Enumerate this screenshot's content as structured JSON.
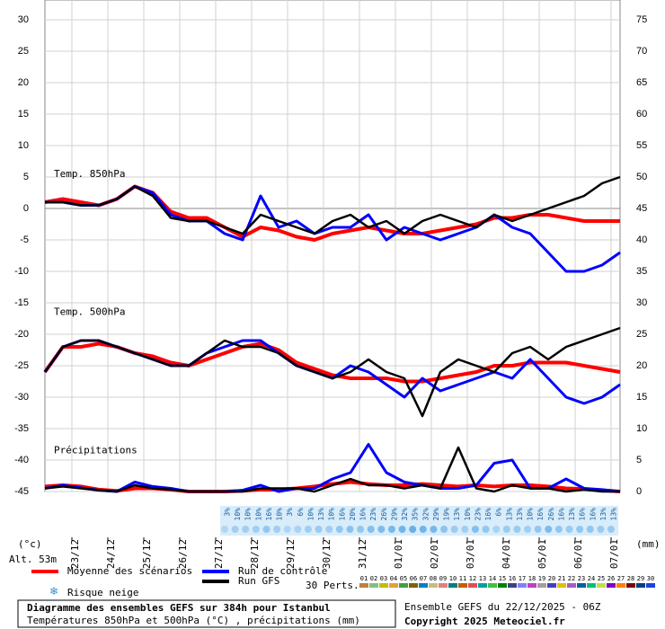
{
  "chart_data": {
    "type": "line",
    "title": "Diagramme des ensembles GEFS sur 384h pour Istanbul",
    "subtitle": "Températures 850hPa et 500hPa (°C) , précipitations (mm)",
    "run_info": "Ensemble GEFS du 22/12/2025 - 06Z",
    "copyright": "Copyright 2025 Meteociel.fr",
    "y_label": "(°c)",
    "y2_label": "(mm)",
    "altitude": "Alt. 53m",
    "grid": true,
    "x": [
      0,
      12,
      24,
      36,
      48,
      60,
      72,
      84,
      96,
      108,
      120,
      132,
      144,
      156,
      168,
      180,
      192,
      204,
      216,
      228,
      240,
      252,
      264,
      276,
      288,
      300,
      312,
      324,
      336,
      348,
      360,
      372,
      384
    ],
    "xlim": [
      0,
      384
    ],
    "xticks": [
      {
        "value": 18,
        "label": "23/12"
      },
      {
        "value": 42,
        "label": "24/12"
      },
      {
        "value": 66,
        "label": "25/12"
      },
      {
        "value": 90,
        "label": "26/12"
      },
      {
        "value": 114,
        "label": "27/12"
      },
      {
        "value": 138,
        "label": "28/12"
      },
      {
        "value": 162,
        "label": "29/12"
      },
      {
        "value": 186,
        "label": "30/12"
      },
      {
        "value": 210,
        "label": "31/12"
      },
      {
        "value": 234,
        "label": "01/01"
      },
      {
        "value": 258,
        "label": "02/01"
      },
      {
        "value": 282,
        "label": "03/01"
      },
      {
        "value": 306,
        "label": "04/01"
      },
      {
        "value": 330,
        "label": "05/01"
      },
      {
        "value": 354,
        "label": "06/01"
      },
      {
        "value": 378,
        "label": "07/01"
      }
    ],
    "ylim": [
      -45,
      30
    ],
    "yticks": [
      30,
      25,
      20,
      15,
      10,
      5,
      0,
      -5,
      -10,
      -15,
      -20,
      -25,
      -30,
      -35,
      -40,
      -45
    ],
    "y2lim": [
      0,
      75
    ],
    "y2ticks": [
      75,
      70,
      65,
      60,
      55,
      50,
      45,
      40,
      35,
      30,
      25,
      20,
      15,
      10,
      5,
      0
    ],
    "panels": [
      {
        "label": "Temp. 850hPa",
        "series": [
          {
            "name": "Moyenne des scénarios",
            "color": "#ff0000",
            "values": [
              1,
              1.5,
              1,
              0.5,
              1.5,
              3.5,
              2.5,
              -0.5,
              -1.5,
              -1.5,
              -3,
              -4.5,
              -3,
              -3.5,
              -4.5,
              -5,
              -4,
              -3.5,
              -3,
              -3.5,
              -4,
              -4,
              -3.5,
              -3,
              -2.5,
              -1.5,
              -1.5,
              -1,
              -1,
              -1.5,
              -2,
              -2,
              -2
            ]
          },
          {
            "name": "Run de contrôle",
            "color": "#0000ff",
            "values": [
              1,
              1,
              0.5,
              0.5,
              1.5,
              3.5,
              2.5,
              -1,
              -2,
              -2,
              -4,
              -5,
              2,
              -3,
              -2,
              -4,
              -3,
              -3,
              -1,
              -5,
              -3,
              -4,
              -5,
              -4,
              -3,
              -1,
              -3,
              -4,
              -7,
              -10,
              -10,
              -9,
              -7
            ]
          },
          {
            "name": "Run GFS",
            "color": "#000000",
            "values": [
              1,
              1,
              0.5,
              0.5,
              1.5,
              3.5,
              2,
              -1.5,
              -2,
              -2,
              -3,
              -4,
              -1,
              -2,
              -3,
              -4,
              -2,
              -1,
              -3,
              -2,
              -4,
              -2,
              -1,
              -2,
              -3,
              -1,
              -2,
              -1,
              0,
              1,
              2,
              4,
              5
            ]
          }
        ]
      },
      {
        "label": "Temp. 500hPa",
        "series": [
          {
            "color": "#ff0000",
            "values": [
              -26,
              -22,
              -22,
              -21.5,
              -22,
              -23,
              -23.5,
              -24.5,
              -25,
              -24,
              -23,
              -22,
              -21.5,
              -22.5,
              -24.5,
              -25.5,
              -26.5,
              -27,
              -27,
              -27,
              -27.5,
              -27.5,
              -27,
              -26.5,
              -26,
              -25,
              -25,
              -24.5,
              -24.5,
              -24.5,
              -25,
              -25.5,
              -26
            ]
          },
          {
            "color": "#0000ff",
            "values": [
              -26,
              -22,
              -21,
              -21,
              -22,
              -23,
              -24,
              -25,
              -25,
              -23,
              -22,
              -21,
              -21,
              -23,
              -25,
              -26,
              -27,
              -25,
              -26,
              -28,
              -30,
              -27,
              -29,
              -28,
              -27,
              -26,
              -27,
              -24,
              -27,
              -30,
              -31,
              -30,
              -28
            ]
          },
          {
            "color": "#000000",
            "values": [
              -26,
              -22,
              -21,
              -21,
              -22,
              -23,
              -24,
              -25,
              -25,
              -23,
              -21,
              -22,
              -22,
              -23,
              -25,
              -26,
              -27,
              -26,
              -24,
              -26,
              -27,
              -33,
              -26,
              -24,
              -25,
              -26,
              -23,
              -22,
              -24,
              -22,
              -21,
              -20,
              -19
            ]
          }
        ]
      },
      {
        "label": "Précipitations",
        "series": [
          {
            "color": "#ff0000",
            "axis": "y2",
            "values": [
              0.8,
              1,
              0.8,
              0.3,
              0.1,
              0.5,
              0.5,
              0.3,
              0,
              0,
              0,
              0.1,
              0.3,
              0.3,
              0.5,
              0.8,
              1.2,
              1.5,
              1.2,
              1,
              1,
              1.2,
              1,
              0.8,
              1,
              0.8,
              1,
              1,
              0.8,
              0.5,
              0.4,
              0.2,
              0
            ]
          },
          {
            "color": "#0000ff",
            "axis": "y2",
            "values": [
              0.5,
              1,
              0.6,
              0.2,
              0,
              1.5,
              0.8,
              0.5,
              0,
              0,
              0,
              0.2,
              1,
              0,
              0.5,
              0.5,
              2,
              3,
              7.5,
              3,
              1.5,
              1,
              0.5,
              0.5,
              1,
              4.5,
              5,
              0.5,
              0.5,
              2,
              0.5,
              0.3,
              0
            ]
          },
          {
            "color": "#000000",
            "axis": "y2",
            "values": [
              0.5,
              0.8,
              0.5,
              0.2,
              0,
              1,
              0.5,
              0.3,
              0,
              0,
              0,
              0,
              0.5,
              0.5,
              0.5,
              0,
              1,
              2,
              1,
              1,
              0.5,
              1,
              0.5,
              7,
              0.5,
              0,
              1,
              0.5,
              0.5,
              0,
              0.3,
              0,
              0
            ]
          }
        ]
      }
    ],
    "snow_risk": {
      "label": "Risque neige",
      "values": [
        3,
        10,
        10,
        10,
        16,
        10,
        3,
        6,
        10,
        13,
        10,
        16,
        20,
        16,
        23,
        26,
        29,
        32,
        35,
        32,
        29,
        19,
        13,
        10,
        23,
        16,
        6,
        13,
        13,
        10,
        16,
        26,
        16,
        13,
        16,
        16,
        13,
        13
      ],
      "value_labels": [
        "3%",
        "10%",
        "10%",
        "10%",
        "16%",
        "10%",
        "3%",
        "6%",
        "10%",
        "13%",
        "10%",
        "16%",
        "20%",
        "16%",
        "23%",
        "26%",
        "29%",
        "32%",
        "35%",
        "32%",
        "29%",
        "19%",
        "13%",
        "10%",
        "23%",
        "16%",
        "6%",
        "13%",
        "13%",
        "10%",
        "16%",
        "26%",
        "16%",
        "13%",
        "16%",
        "16%",
        "13%",
        "13%"
      ]
    },
    "perturbations": {
      "label": "30 Perts.",
      "items": [
        {
          "label": "01",
          "color": "#c08040"
        },
        {
          "label": "02",
          "color": "#80c080"
        },
        {
          "label": "03",
          "color": "#c0c000"
        },
        {
          "label": "04",
          "color": "#e0a040"
        },
        {
          "label": "05",
          "color": "#40a040"
        },
        {
          "label": "06",
          "color": "#806000"
        },
        {
          "label": "07",
          "color": "#0080c0"
        },
        {
          "label": "08",
          "color": "#c0c080"
        },
        {
          "label": "09",
          "color": "#e08080"
        },
        {
          "label": "10",
          "color": "#008080"
        },
        {
          "label": "11",
          "color": "#c06000"
        },
        {
          "label": "12",
          "color": "#e05050"
        },
        {
          "label": "13",
          "color": "#00a0a0"
        },
        {
          "label": "14",
          "color": "#40c040"
        },
        {
          "label": "15",
          "color": "#008000"
        },
        {
          "label": "16",
          "color": "#404080"
        },
        {
          "label": "17",
          "color": "#8080ff"
        },
        {
          "label": "18",
          "color": "#c040c0"
        },
        {
          "label": "19",
          "color": "#a0a0a0"
        },
        {
          "label": "20",
          "color": "#4040c0"
        },
        {
          "label": "21",
          "color": "#e0c000"
        },
        {
          "label": "22",
          "color": "#a060c0"
        },
        {
          "label": "23",
          "color": "#0060a0"
        },
        {
          "label": "24",
          "color": "#00c080"
        },
        {
          "label": "25",
          "color": "#c0e040"
        },
        {
          "label": "26",
          "color": "#8000c0"
        },
        {
          "label": "27",
          "color": "#ff8000"
        },
        {
          "label": "28",
          "color": "#800000"
        },
        {
          "label": "29",
          "color": "#004080"
        },
        {
          "label": "30",
          "color": "#2040e0"
        }
      ]
    }
  }
}
